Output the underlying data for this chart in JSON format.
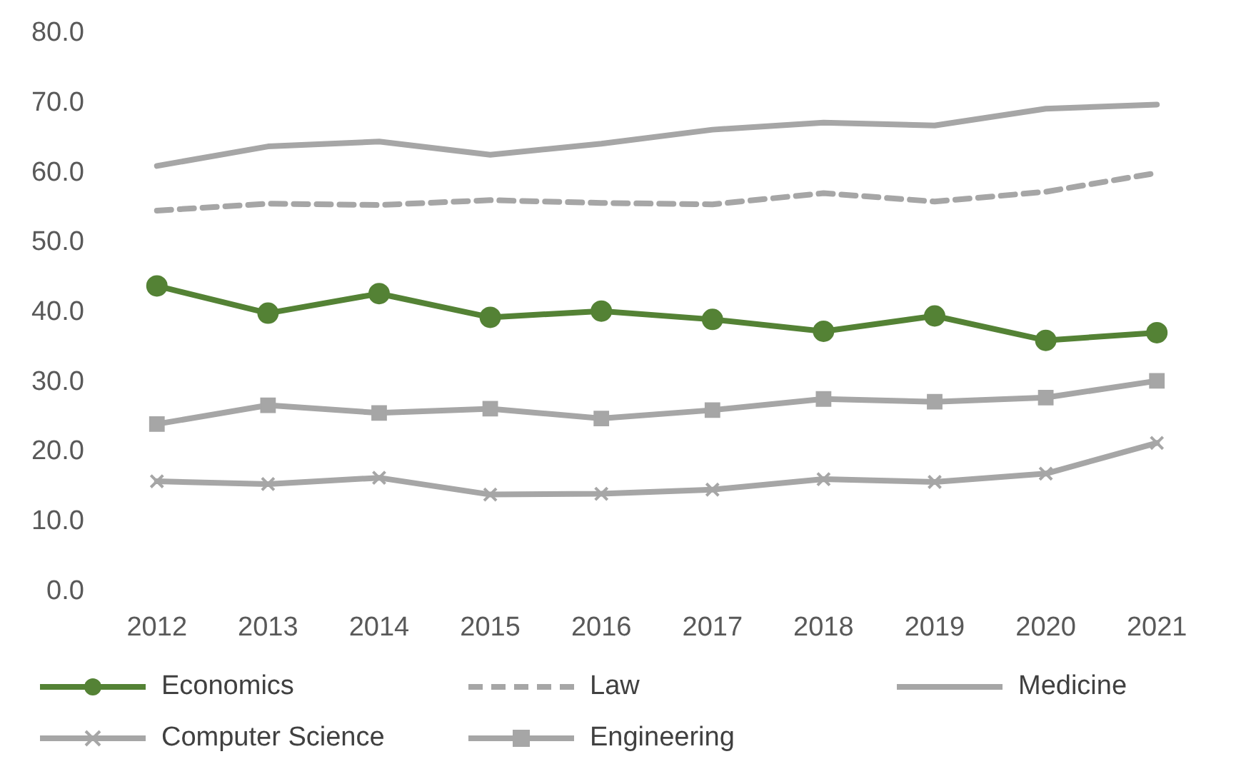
{
  "chart_data": {
    "type": "line",
    "categories": [
      "2012",
      "2013",
      "2014",
      "2015",
      "2016",
      "2017",
      "2018",
      "2019",
      "2020",
      "2021"
    ],
    "ylim": [
      0,
      80
    ],
    "yticks": [
      {
        "value": 0,
        "label": "0.0"
      },
      {
        "value": 10,
        "label": "10.0"
      },
      {
        "value": 20,
        "label": "20.0"
      },
      {
        "value": 30,
        "label": "30.0"
      },
      {
        "value": 40,
        "label": "40.0"
      },
      {
        "value": 50,
        "label": "50.0"
      },
      {
        "value": 60,
        "label": "60.0"
      },
      {
        "value": 70,
        "label": "70.0"
      },
      {
        "value": 80,
        "label": "80.0"
      }
    ],
    "grid": false,
    "legend": "bottom",
    "series": [
      {
        "name": "Economics",
        "color": "#548235",
        "marker": "circle",
        "line_style": "solid",
        "values": [
          43.8,
          39.9,
          42.7,
          39.3,
          40.2,
          39.0,
          37.3,
          39.5,
          36.0,
          37.1
        ]
      },
      {
        "name": "Law",
        "color": "#a6a6a6",
        "marker": "none",
        "line_style": "dashed",
        "values": [
          54.6,
          55.6,
          55.4,
          56.1,
          55.7,
          55.5,
          57.1,
          55.9,
          57.3,
          60.0
        ]
      },
      {
        "name": "Medicine",
        "color": "#a6a6a6",
        "marker": "none",
        "line_style": "solid",
        "values": [
          61.0,
          63.8,
          64.5,
          62.6,
          64.2,
          66.2,
          67.2,
          66.8,
          69.2,
          69.8
        ]
      },
      {
        "name": "Computer Science",
        "color": "#a6a6a6",
        "marker": "cross",
        "line_style": "solid",
        "values": [
          15.8,
          15.4,
          16.3,
          13.9,
          14.0,
          14.6,
          16.1,
          15.7,
          16.9,
          21.3
        ]
      },
      {
        "name": "Engineering",
        "color": "#a6a6a6",
        "marker": "square",
        "line_style": "solid",
        "values": [
          24.0,
          26.7,
          25.6,
          26.2,
          24.8,
          26.0,
          27.6,
          27.2,
          27.8,
          30.2
        ]
      }
    ]
  }
}
